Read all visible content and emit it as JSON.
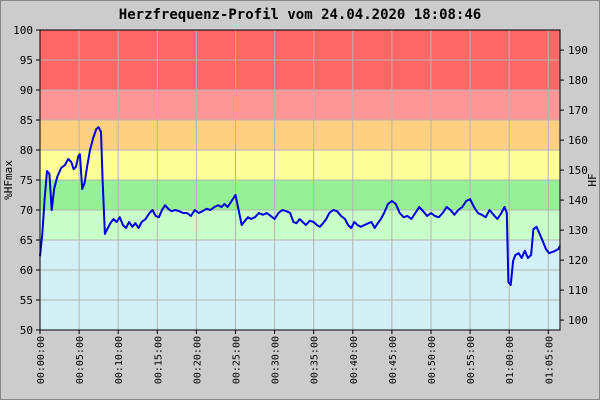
{
  "chart_data": {
    "type": "line",
    "title": "Herzfrequenz-Profil vom 24.04.2020 18:08:46",
    "ylabel_left": "%HFmax",
    "ylabel_right": "HF",
    "xlabel": "",
    "ylim_left": [
      50,
      100
    ],
    "ylim_right": [
      96.7,
      196.7
    ],
    "y_ticks_left": [
      "50",
      "55",
      "60",
      "65",
      "70",
      "75",
      "80",
      "85",
      "90",
      "95",
      "100"
    ],
    "y_ticks_right": [
      "100",
      "110",
      "120",
      "130",
      "140",
      "150",
      "160",
      "170",
      "180",
      "190"
    ],
    "x_ticks": [
      "00:00:00",
      "00:05:00",
      "00:10:00",
      "00:15:00",
      "00:20:00",
      "00:25:00",
      "00:30:00",
      "00:35:00",
      "00:40:00",
      "00:45:00",
      "00:50:00",
      "00:55:00",
      "01:00:00",
      "01:05:00"
    ],
    "xlim_minutes": [
      0,
      66.5
    ],
    "grid": true,
    "zones": [
      {
        "from": 50,
        "to": 65,
        "color": "#d2f0f5"
      },
      {
        "from": 65,
        "to": 70,
        "color": "#c8ffc8"
      },
      {
        "from": 70,
        "to": 75,
        "color": "#96f096"
      },
      {
        "from": 75,
        "to": 80,
        "color": "#ffff99"
      },
      {
        "from": 80,
        "to": 85,
        "color": "#ffd080"
      },
      {
        "from": 85,
        "to": 90,
        "color": "#ff9696"
      },
      {
        "from": 90,
        "to": 100,
        "color": "#ff6666"
      }
    ],
    "series": [
      {
        "color": "#0000dd",
        "points": [
          [
            0.0,
            62.3
          ],
          [
            0.3,
            66.0
          ],
          [
            0.6,
            72.0
          ],
          [
            0.9,
            76.5
          ],
          [
            1.2,
            76.0
          ],
          [
            1.5,
            70.0
          ],
          [
            1.8,
            73.5
          ],
          [
            2.2,
            75.5
          ],
          [
            2.7,
            77.0
          ],
          [
            3.2,
            77.5
          ],
          [
            3.6,
            78.5
          ],
          [
            4.0,
            78.0
          ],
          [
            4.3,
            76.8
          ],
          [
            4.6,
            77.2
          ],
          [
            4.9,
            79.0
          ],
          [
            5.1,
            79.3
          ],
          [
            5.4,
            73.5
          ],
          [
            5.7,
            74.5
          ],
          [
            6.0,
            77.0
          ],
          [
            6.4,
            80.0
          ],
          [
            6.8,
            82.0
          ],
          [
            7.2,
            83.5
          ],
          [
            7.5,
            83.8
          ],
          [
            7.8,
            83.0
          ],
          [
            8.0,
            75.0
          ],
          [
            8.3,
            66.0
          ],
          [
            8.6,
            66.8
          ],
          [
            9.0,
            67.8
          ],
          [
            9.4,
            68.5
          ],
          [
            9.8,
            68.0
          ],
          [
            10.2,
            68.8
          ],
          [
            10.6,
            67.5
          ],
          [
            11.0,
            67.0
          ],
          [
            11.4,
            68.0
          ],
          [
            11.8,
            67.2
          ],
          [
            12.2,
            67.8
          ],
          [
            12.6,
            67.0
          ],
          [
            13.0,
            68.0
          ],
          [
            13.5,
            68.5
          ],
          [
            14.0,
            69.5
          ],
          [
            14.4,
            70.0
          ],
          [
            14.8,
            69.0
          ],
          [
            15.2,
            68.8
          ],
          [
            15.6,
            70.0
          ],
          [
            16.0,
            70.8
          ],
          [
            16.4,
            70.2
          ],
          [
            16.8,
            69.8
          ],
          [
            17.3,
            70.0
          ],
          [
            17.8,
            69.8
          ],
          [
            18.3,
            69.5
          ],
          [
            18.8,
            69.5
          ],
          [
            19.3,
            69.0
          ],
          [
            19.8,
            70.0
          ],
          [
            20.3,
            69.5
          ],
          [
            20.8,
            69.8
          ],
          [
            21.3,
            70.2
          ],
          [
            21.8,
            70.0
          ],
          [
            22.3,
            70.5
          ],
          [
            22.8,
            70.8
          ],
          [
            23.2,
            70.5
          ],
          [
            23.6,
            71.0
          ],
          [
            24.0,
            70.5
          ],
          [
            24.5,
            71.5
          ],
          [
            25.0,
            72.5
          ],
          [
            25.4,
            70.0
          ],
          [
            25.8,
            67.5
          ],
          [
            26.2,
            68.2
          ],
          [
            26.6,
            68.8
          ],
          [
            27.0,
            68.5
          ],
          [
            27.5,
            68.8
          ],
          [
            28.0,
            69.5
          ],
          [
            28.5,
            69.2
          ],
          [
            29.0,
            69.5
          ],
          [
            29.5,
            69.0
          ],
          [
            30.0,
            68.5
          ],
          [
            30.5,
            69.5
          ],
          [
            31.0,
            70.0
          ],
          [
            31.5,
            69.8
          ],
          [
            32.0,
            69.5
          ],
          [
            32.4,
            68.0
          ],
          [
            32.8,
            67.8
          ],
          [
            33.2,
            68.5
          ],
          [
            33.6,
            68.0
          ],
          [
            34.0,
            67.5
          ],
          [
            34.5,
            68.2
          ],
          [
            35.0,
            68.0
          ],
          [
            35.4,
            67.5
          ],
          [
            35.8,
            67.2
          ],
          [
            36.2,
            67.8
          ],
          [
            36.6,
            68.5
          ],
          [
            37.0,
            69.5
          ],
          [
            37.5,
            70.0
          ],
          [
            38.0,
            69.8
          ],
          [
            38.5,
            69.0
          ],
          [
            39.0,
            68.5
          ],
          [
            39.4,
            67.5
          ],
          [
            39.8,
            67.0
          ],
          [
            40.2,
            68.0
          ],
          [
            40.6,
            67.5
          ],
          [
            41.0,
            67.2
          ],
          [
            41.5,
            67.5
          ],
          [
            42.0,
            67.8
          ],
          [
            42.4,
            68.0
          ],
          [
            42.8,
            67.0
          ],
          [
            43.2,
            67.8
          ],
          [
            43.6,
            68.5
          ],
          [
            44.0,
            69.5
          ],
          [
            44.5,
            71.0
          ],
          [
            45.0,
            71.5
          ],
          [
            45.5,
            71.0
          ],
          [
            46.0,
            69.5
          ],
          [
            46.5,
            68.8
          ],
          [
            47.0,
            69.0
          ],
          [
            47.5,
            68.5
          ],
          [
            48.0,
            69.5
          ],
          [
            48.5,
            70.5
          ],
          [
            49.0,
            69.8
          ],
          [
            49.5,
            69.0
          ],
          [
            50.0,
            69.5
          ],
          [
            50.5,
            69.0
          ],
          [
            51.0,
            68.8
          ],
          [
            51.5,
            69.5
          ],
          [
            52.0,
            70.5
          ],
          [
            52.5,
            70.0
          ],
          [
            53.0,
            69.2
          ],
          [
            53.5,
            70.0
          ],
          [
            54.0,
            70.5
          ],
          [
            54.5,
            71.5
          ],
          [
            55.0,
            71.8
          ],
          [
            55.5,
            70.5
          ],
          [
            56.0,
            69.5
          ],
          [
            56.5,
            69.2
          ],
          [
            57.0,
            68.8
          ],
          [
            57.5,
            70.0
          ],
          [
            58.0,
            69.2
          ],
          [
            58.5,
            68.5
          ],
          [
            59.0,
            69.5
          ],
          [
            59.4,
            70.5
          ],
          [
            59.7,
            69.5
          ],
          [
            59.9,
            58.0
          ],
          [
            60.2,
            57.5
          ],
          [
            60.5,
            61.5
          ],
          [
            60.8,
            62.5
          ],
          [
            61.2,
            62.8
          ],
          [
            61.6,
            62.0
          ],
          [
            62.0,
            63.2
          ],
          [
            62.4,
            62.0
          ],
          [
            62.8,
            62.5
          ],
          [
            63.1,
            66.8
          ],
          [
            63.5,
            67.2
          ],
          [
            63.9,
            66.0
          ],
          [
            64.3,
            64.8
          ],
          [
            64.7,
            63.5
          ],
          [
            65.1,
            62.8
          ],
          [
            65.5,
            63.0
          ],
          [
            65.9,
            63.2
          ],
          [
            66.3,
            63.5
          ],
          [
            66.5,
            64.0
          ]
        ]
      }
    ]
  }
}
